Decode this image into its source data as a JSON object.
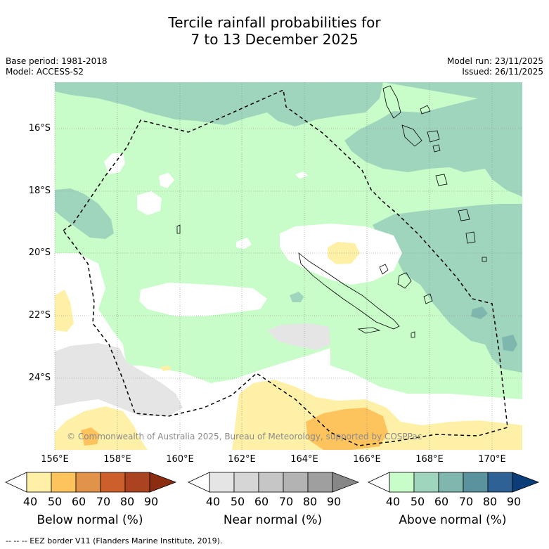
{
  "title_line1": "Tercile rainfall probabilities for",
  "title_line2": "7 to 13 December 2025",
  "base_period": "Base period: 1981-2018",
  "model": "Model: ACCESS-S2",
  "model_run": "Model run: 23/11/2025",
  "issued": "Issued: 26/11/2025",
  "lat_labels": [
    "16°S",
    "18°S",
    "20°S",
    "22°S",
    "24°S"
  ],
  "lon_labels": [
    "156°E",
    "158°E",
    "160°E",
    "162°E",
    "164°E",
    "166°E",
    "168°E",
    "170°E"
  ],
  "copyright": "© Commonwealth of Australia 2025, Bureau of Meteorology, supported by COSPPac",
  "colorbars": {
    "below": {
      "title": "Below normal (%)",
      "ticks": [
        "40",
        "50",
        "60",
        "70",
        "80",
        "90"
      ],
      "colors": [
        "#ffffff",
        "#fff0a8",
        "#fdc45e",
        "#e2934a",
        "#cc5f2c",
        "#ab4321",
        "#8c2d11"
      ]
    },
    "near": {
      "title": "Near normal (%)",
      "ticks": [
        "40",
        "50",
        "60",
        "70",
        "80",
        "90"
      ],
      "colors": [
        "#ffffff",
        "#e5e5e5",
        "#d6d6d6",
        "#c6c6c6",
        "#b3b3b3",
        "#9f9f9f",
        "#878787"
      ]
    },
    "above": {
      "title": "Above normal (%)",
      "ticks": [
        "40",
        "50",
        "60",
        "70",
        "80",
        "90"
      ],
      "colors": [
        "#ffffff",
        "#c8fcc8",
        "#a0d5bd",
        "#7fb6ae",
        "#5a939e",
        "#2f6294",
        "#0b3e79"
      ]
    }
  },
  "footer": "--  --  -- EEZ border V11 (Flanders Marine Institute, 2019)."
}
